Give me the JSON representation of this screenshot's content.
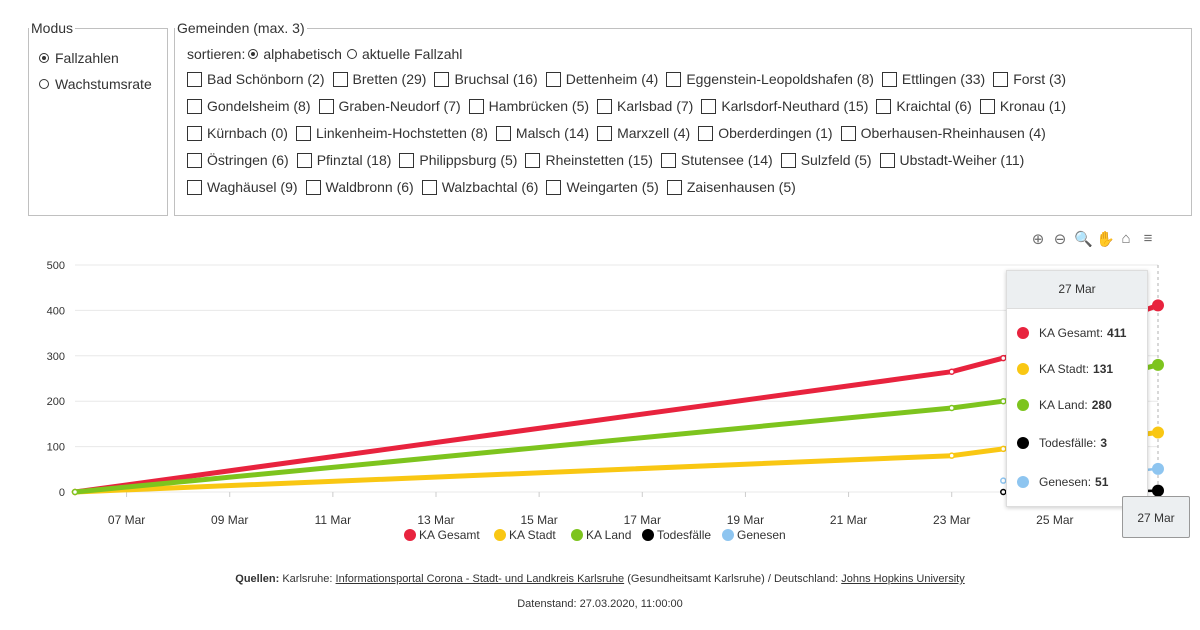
{
  "modus": {
    "legend": "Modus",
    "options": [
      {
        "label": "Fallzahlen",
        "selected": true
      },
      {
        "label": "Wachstumsrate",
        "selected": false
      }
    ]
  },
  "gemeinden": {
    "legend": "Gemeinden (max. 3)",
    "sort_prefix": "sortieren:",
    "sort_options": [
      {
        "label": "alphabetisch",
        "selected": true
      },
      {
        "label": "aktuelle Fallzahl",
        "selected": false
      }
    ],
    "rows": [
      [
        "Bad Schönborn (2)",
        "Bretten (29)",
        "Bruchsal (16)",
        "Dettenheim (4)",
        "Eggenstein-Leopoldshafen (8)",
        "Ettlingen (33)",
        "Forst (3)"
      ],
      [
        "Gondelsheim (8)",
        "Graben-Neudorf (7)",
        "Hambrücken (5)",
        "Karlsbad (7)",
        "Karlsdorf-Neuthard (15)",
        "Kraichtal (6)",
        "Kronau (1)"
      ],
      [
        "Kürnbach (0)",
        "Linkenheim-Hochstetten (8)",
        "Malsch (14)",
        "Marxzell (4)",
        "Oberderdingen (1)",
        "Oberhausen-Rheinhausen (4)"
      ],
      [
        "Östringen (6)",
        "Pfinztal (18)",
        "Philippsburg (5)",
        "Rheinstetten (15)",
        "Stutensee (14)",
        "Sulzfeld (5)",
        "Ubstadt-Weiher (11)"
      ],
      [
        "Waghäusel (9)",
        "Waldbronn (6)",
        "Walzbachtal (6)",
        "Weingarten (5)",
        "Zaisenhausen (5)"
      ]
    ]
  },
  "toolbar": {
    "icons": [
      "zoom-in-icon",
      "zoom-out-icon",
      "zoom-selection-icon",
      "pan-icon",
      "home-icon",
      "menu-icon"
    ],
    "glyphs": [
      "⊕",
      "⊖",
      "🔍",
      "✋",
      "⌂",
      "≡"
    ]
  },
  "chart_data": {
    "type": "line",
    "x_ticks": [
      "07 Mar",
      "09 Mar",
      "11 Mar",
      "13 Mar",
      "15 Mar",
      "17 Mar",
      "19 Mar",
      "21 Mar",
      "23 Mar",
      "25 Mar",
      "27 Mar"
    ],
    "y_ticks": [
      "0",
      "100",
      "200",
      "300",
      "400",
      "500"
    ],
    "ylim": [
      0,
      500
    ],
    "grid": true,
    "legend_position": "bottom",
    "series": [
      {
        "name": "KA Gesamt",
        "color": "#e8233e",
        "points": [
          [
            "2020-03-06",
            0
          ],
          [
            "2020-03-23",
            265
          ],
          [
            "2020-03-24",
            295
          ],
          [
            "2020-03-25",
            325
          ],
          [
            "2020-03-26",
            370
          ],
          [
            "2020-03-27",
            411
          ]
        ]
      },
      {
        "name": "KA Stadt",
        "color": "#f9c713",
        "points": [
          [
            "2020-03-06",
            0
          ],
          [
            "2020-03-23",
            80
          ],
          [
            "2020-03-24",
            95
          ],
          [
            "2020-03-25",
            105
          ],
          [
            "2020-03-26",
            118
          ],
          [
            "2020-03-27",
            131
          ]
        ]
      },
      {
        "name": "KA Land",
        "color": "#7dc41e",
        "points": [
          [
            "2020-03-06",
            0
          ],
          [
            "2020-03-23",
            185
          ],
          [
            "2020-03-24",
            200
          ],
          [
            "2020-03-25",
            220
          ],
          [
            "2020-03-26",
            252
          ],
          [
            "2020-03-27",
            280
          ]
        ]
      },
      {
        "name": "Todesfälle",
        "color": "#000000",
        "points": [
          [
            "2020-03-24",
            0
          ],
          [
            "2020-03-25",
            0
          ],
          [
            "2020-03-26",
            0
          ],
          [
            "2020-03-27",
            3
          ]
        ]
      },
      {
        "name": "Genesen",
        "color": "#8ec5f0",
        "points": [
          [
            "2020-03-24",
            25
          ],
          [
            "2020-03-25",
            30
          ],
          [
            "2020-03-26",
            40
          ],
          [
            "2020-03-27",
            51
          ]
        ]
      }
    ]
  },
  "tooltip": {
    "date": "27 Mar",
    "rows": [
      {
        "label": "KA Gesamt:",
        "value": "411",
        "color": "#e8233e"
      },
      {
        "label": "KA Stadt:",
        "value": "131",
        "color": "#f9c713"
      },
      {
        "label": "KA Land:",
        "value": "280",
        "color": "#7dc41e"
      },
      {
        "label": "Todesfälle:",
        "value": "3",
        "color": "#000000"
      },
      {
        "label": "Genesen:",
        "value": "51",
        "color": "#8ec5f0"
      }
    ]
  },
  "x_badge": "27 Mar",
  "footer": {
    "quellen_label": "Quellen:",
    "karlsruhe_prefix": "Karlsruhe:",
    "link1": "Informationsportal Corona - Stadt- und Landkreis Karlsruhe",
    "link1_suffix": "(Gesundheitsamt Karlsruhe) / Deutschland:",
    "link2": "Johns Hopkins University",
    "datenstand": "Datenstand: 27.03.2020, 11:00:00"
  }
}
